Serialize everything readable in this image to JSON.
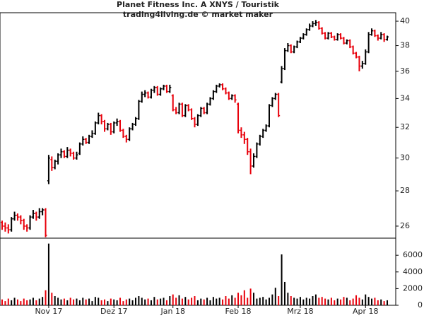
{
  "chart_data": {
    "type": "ohlc",
    "title": "Planet Fitness Inc. A XNYS / Touristik",
    "subtitle": "trading4living.de © market maker",
    "log_y": true,
    "up_color": "#000000",
    "down_color": "#e8000b",
    "ylim": [
      25.35,
      40.6
    ],
    "yticks": [
      26,
      28,
      30,
      32,
      34,
      36,
      38,
      40
    ],
    "categories": [
      null,
      null,
      null,
      null,
      null,
      null,
      null,
      null,
      null,
      null,
      null,
      null,
      null,
      null,
      null,
      "Nov 17",
      null,
      null,
      null,
      null,
      null,
      null,
      null,
      null,
      null,
      null,
      null,
      null,
      null,
      null,
      null,
      null,
      null,
      null,
      null,
      null,
      "Dez 17",
      null,
      null,
      null,
      null,
      null,
      null,
      null,
      null,
      null,
      null,
      null,
      null,
      null,
      null,
      null,
      null,
      null,
      null,
      "Jan 18",
      null,
      null,
      null,
      null,
      null,
      null,
      null,
      null,
      null,
      null,
      null,
      null,
      null,
      null,
      null,
      null,
      null,
      null,
      null,
      null,
      "Feb 18",
      null,
      null,
      null,
      null,
      null,
      null,
      null,
      null,
      null,
      null,
      null,
      null,
      null,
      null,
      null,
      null,
      null,
      null,
      null,
      "Mrz 18",
      null,
      null,
      null,
      null,
      null,
      null,
      null,
      null,
      null,
      null,
      null,
      null,
      null,
      null,
      null,
      null,
      null,
      null,
      null,
      null,
      "Apr 18",
      null,
      null,
      null,
      null,
      null,
      null,
      null
    ],
    "ohlc": [
      [
        26.2,
        26.3,
        25.8,
        26.0
      ],
      [
        26.0,
        26.2,
        25.7,
        25.9
      ],
      [
        25.9,
        26.1,
        25.6,
        25.8
      ],
      [
        25.8,
        26.5,
        25.7,
        26.4
      ],
      [
        26.4,
        26.8,
        26.3,
        26.6
      ],
      [
        26.6,
        26.7,
        26.3,
        26.5
      ],
      [
        26.5,
        26.6,
        26.1,
        26.3
      ],
      [
        26.3,
        26.4,
        25.8,
        26.0
      ],
      [
        26.0,
        26.1,
        25.7,
        25.9
      ],
      [
        25.9,
        26.6,
        25.8,
        26.5
      ],
      [
        26.5,
        26.9,
        26.4,
        26.7
      ],
      [
        26.7,
        26.8,
        26.3,
        26.5
      ],
      [
        26.5,
        27.0,
        26.4,
        26.8
      ],
      [
        26.8,
        27.0,
        26.6,
        26.9
      ],
      [
        26.9,
        27.0,
        25.4,
        25.5
      ],
      [
        28.6,
        30.2,
        28.4,
        30.0
      ],
      [
        29.9,
        30.1,
        29.2,
        29.4
      ],
      [
        29.4,
        29.9,
        29.3,
        29.8
      ],
      [
        29.8,
        30.3,
        29.6,
        30.2
      ],
      [
        30.2,
        30.6,
        30.0,
        30.4
      ],
      [
        30.4,
        30.5,
        30.0,
        30.1
      ],
      [
        30.1,
        30.7,
        30.0,
        30.5
      ],
      [
        30.5,
        30.6,
        30.1,
        30.3
      ],
      [
        30.3,
        30.4,
        29.9,
        30.0
      ],
      [
        30.0,
        30.4,
        29.9,
        30.2
      ],
      [
        30.3,
        31.0,
        30.2,
        30.9
      ],
      [
        30.9,
        31.4,
        30.8,
        31.2
      ],
      [
        31.2,
        31.3,
        30.9,
        31.0
      ],
      [
        31.0,
        31.5,
        30.9,
        31.4
      ],
      [
        31.4,
        31.8,
        31.3,
        31.6
      ],
      [
        31.6,
        32.4,
        31.5,
        32.3
      ],
      [
        32.3,
        33.0,
        32.2,
        32.8
      ],
      [
        32.8,
        32.9,
        32.2,
        32.4
      ],
      [
        32.4,
        32.5,
        31.7,
        31.9
      ],
      [
        31.9,
        32.3,
        31.8,
        32.2
      ],
      [
        32.2,
        32.3,
        31.5,
        31.7
      ],
      [
        31.7,
        32.4,
        31.6,
        32.3
      ],
      [
        32.3,
        32.6,
        32.1,
        32.4
      ],
      [
        32.4,
        32.5,
        31.7,
        31.8
      ],
      [
        31.8,
        31.9,
        31.3,
        31.4
      ],
      [
        31.4,
        31.5,
        31.0,
        31.2
      ],
      [
        31.2,
        32.0,
        31.1,
        31.9
      ],
      [
        31.9,
        32.3,
        31.8,
        32.2
      ],
      [
        32.2,
        32.7,
        32.1,
        32.6
      ],
      [
        32.6,
        33.9,
        32.5,
        33.8
      ],
      [
        33.8,
        34.5,
        33.7,
        34.3
      ],
      [
        34.3,
        34.6,
        34.1,
        34.4
      ],
      [
        34.4,
        34.5,
        34.0,
        34.1
      ],
      [
        34.1,
        34.7,
        34.0,
        34.6
      ],
      [
        34.6,
        34.9,
        34.4,
        34.8
      ],
      [
        34.8,
        34.9,
        34.2,
        34.3
      ],
      [
        34.3,
        34.8,
        34.2,
        34.7
      ],
      [
        34.7,
        35.0,
        34.6,
        34.9
      ],
      [
        34.9,
        35.0,
        34.4,
        34.5
      ],
      [
        34.5,
        35.0,
        34.4,
        34.8
      ],
      [
        34.2,
        34.3,
        33.1,
        33.2
      ],
      [
        33.2,
        33.4,
        32.9,
        33.0
      ],
      [
        33.0,
        33.7,
        32.9,
        33.6
      ],
      [
        33.6,
        33.7,
        32.7,
        32.8
      ],
      [
        32.8,
        33.6,
        32.7,
        33.5
      ],
      [
        33.5,
        33.6,
        33.1,
        33.2
      ],
      [
        33.2,
        33.3,
        32.5,
        32.6
      ],
      [
        32.6,
        32.7,
        32.0,
        32.2
      ],
      [
        32.2,
        32.9,
        32.1,
        32.8
      ],
      [
        32.8,
        33.4,
        32.7,
        33.3
      ],
      [
        33.3,
        33.4,
        32.9,
        33.0
      ],
      [
        33.0,
        33.7,
        32.9,
        33.6
      ],
      [
        33.6,
        34.1,
        33.5,
        34.0
      ],
      [
        34.0,
        34.6,
        33.9,
        34.5
      ],
      [
        34.5,
        35.0,
        34.4,
        34.9
      ],
      [
        34.9,
        35.1,
        34.8,
        35.0
      ],
      [
        35.0,
        35.1,
        34.6,
        34.7
      ],
      [
        34.7,
        34.8,
        34.3,
        34.4
      ],
      [
        34.4,
        34.5,
        33.9,
        34.0
      ],
      [
        34.0,
        34.3,
        33.9,
        34.2
      ],
      [
        34.2,
        34.3,
        33.7,
        33.9
      ],
      [
        33.6,
        33.7,
        31.6,
        31.8
      ],
      [
        31.8,
        32.0,
        31.3,
        31.5
      ],
      [
        31.5,
        31.7,
        30.9,
        31.2
      ],
      [
        31.2,
        31.3,
        30.2,
        30.4
      ],
      [
        30.4,
        30.6,
        29.0,
        29.5
      ],
      [
        29.5,
        30.3,
        29.4,
        30.1
      ],
      [
        30.1,
        31.0,
        30.0,
        30.9
      ],
      [
        30.9,
        31.5,
        30.8,
        31.4
      ],
      [
        31.4,
        31.9,
        31.3,
        31.8
      ],
      [
        31.8,
        32.2,
        31.7,
        32.1
      ],
      [
        32.1,
        33.6,
        32.0,
        33.5
      ],
      [
        33.5,
        34.1,
        33.4,
        34.0
      ],
      [
        34.0,
        34.4,
        33.9,
        34.3
      ],
      [
        34.3,
        34.4,
        32.7,
        32.8
      ],
      [
        35.2,
        36.4,
        35.1,
        36.2
      ],
      [
        36.2,
        37.8,
        36.1,
        37.6
      ],
      [
        37.6,
        38.2,
        37.5,
        38.0
      ],
      [
        38.0,
        38.1,
        37.4,
        37.5
      ],
      [
        37.5,
        38.0,
        37.4,
        37.9
      ],
      [
        37.9,
        38.4,
        37.8,
        38.3
      ],
      [
        38.3,
        38.7,
        38.2,
        38.6
      ],
      [
        38.6,
        39.0,
        38.5,
        38.9
      ],
      [
        38.9,
        39.4,
        38.8,
        39.3
      ],
      [
        39.3,
        39.8,
        39.2,
        39.6
      ],
      [
        39.6,
        40.0,
        39.5,
        39.8
      ],
      [
        39.8,
        40.1,
        39.6,
        39.9
      ],
      [
        39.9,
        40.0,
        39.3,
        39.4
      ],
      [
        39.4,
        39.5,
        38.9,
        39.0
      ],
      [
        39.0,
        39.1,
        38.5,
        38.6
      ],
      [
        38.6,
        39.1,
        38.5,
        39.0
      ],
      [
        39.0,
        39.1,
        38.6,
        38.7
      ],
      [
        38.7,
        38.8,
        38.4,
        38.5
      ],
      [
        38.5,
        39.0,
        38.4,
        38.9
      ],
      [
        38.9,
        39.0,
        38.5,
        38.6
      ],
      [
        38.6,
        38.7,
        38.1,
        38.2
      ],
      [
        38.2,
        38.5,
        38.1,
        38.4
      ],
      [
        38.4,
        38.5,
        37.8,
        37.9
      ],
      [
        37.9,
        38.0,
        37.3,
        37.4
      ],
      [
        37.4,
        37.5,
        37.0,
        37.1
      ],
      [
        37.1,
        37.2,
        36.0,
        36.4
      ],
      [
        36.4,
        36.8,
        36.2,
        36.6
      ],
      [
        36.6,
        37.7,
        36.5,
        37.5
      ],
      [
        37.5,
        39.1,
        37.4,
        38.9
      ],
      [
        38.9,
        39.4,
        38.8,
        39.2
      ],
      [
        39.2,
        39.3,
        38.7,
        38.8
      ],
      [
        38.8,
        38.9,
        38.4,
        38.6
      ],
      [
        38.6,
        39.1,
        38.5,
        38.9
      ],
      [
        38.9,
        39.0,
        38.3,
        38.5
      ],
      [
        38.5,
        38.8,
        38.4,
        38.7
      ]
    ],
    "volume": {
      "ylim": [
        0,
        8050
      ],
      "yticks": [
        0,
        2000,
        4000,
        6000
      ],
      "values": [
        700,
        500,
        800,
        600,
        900,
        700,
        500,
        800,
        600,
        700,
        900,
        600,
        800,
        1000,
        1800,
        7400,
        1500,
        1100,
        900,
        700,
        800,
        600,
        900,
        700,
        800,
        600,
        900,
        700,
        800,
        500,
        1000,
        900,
        600,
        700,
        500,
        800,
        700,
        600,
        900,
        500,
        700,
        800,
        600,
        900,
        1100,
        900,
        700,
        800,
        600,
        1000,
        700,
        800,
        900,
        600,
        1100,
        1300,
        900,
        1200,
        800,
        1000,
        700,
        900,
        1100,
        600,
        800,
        700,
        900,
        600,
        1000,
        800,
        900,
        700,
        1100,
        800,
        1200,
        900,
        1500,
        1200,
        1800,
        900,
        2000,
        1500,
        800,
        900,
        1000,
        700,
        900,
        1300,
        2100,
        1100,
        6100,
        2800,
        1500,
        1100,
        900,
        800,
        1000,
        700,
        900,
        800,
        1100,
        1300,
        900,
        1000,
        800,
        700,
        900,
        600,
        800,
        700,
        1000,
        900,
        600,
        800,
        1200,
        900,
        700,
        1300,
        1000,
        800,
        900,
        600,
        700,
        500,
        600
      ]
    }
  }
}
